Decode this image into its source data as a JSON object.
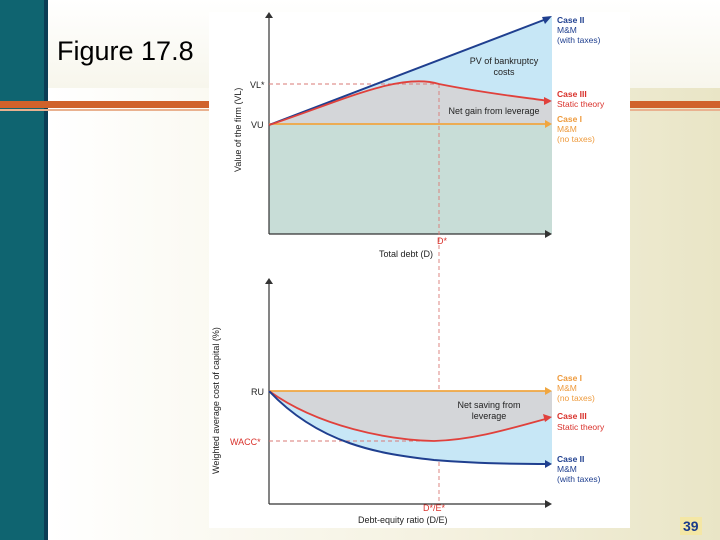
{
  "slide": {
    "title": "Figure 17.8",
    "page_number": "39"
  },
  "top_chart": {
    "y_axis_label": "Value of the firm (VL)",
    "x_axis_label": "Total debt (D)",
    "vl_star": "VL*",
    "vu": "VU",
    "d_star": "D*",
    "pv_bankruptcy": [
      "PV of bankruptcy",
      "costs"
    ],
    "net_gain": "Net gain from leverage",
    "case2": [
      "Case II",
      "M&M",
      "(with taxes)"
    ],
    "case3": [
      "Case III",
      "Static theory"
    ],
    "case1": [
      "Case I",
      "M&M",
      "(no taxes)"
    ]
  },
  "bottom_chart": {
    "y_axis_label": "Weighted average cost of capital (%)",
    "x_axis_label": "Debt-equity ratio (D/E)",
    "ru": "RU",
    "wacc_star": "WACC*",
    "de_star": "D*/E*",
    "net_saving": [
      "Net saving from",
      "leverage"
    ],
    "case1": [
      "Case I",
      "M&M",
      "(no taxes)"
    ],
    "case3": [
      "Case III",
      "Static theory"
    ],
    "case2": [
      "Case II",
      "M&M",
      "(with taxes)"
    ]
  },
  "colors": {
    "case2_line": "#1f3f8f",
    "case3_line": "#e0413c",
    "case1_line": "#f0a640",
    "case_label_red": "#d9312b",
    "case_label_orange": "#ee9a3c",
    "case_label_blue": "#1f3f8f",
    "light_blue_fill": "#c7e7f6",
    "gray_fill": "#d4d6d9",
    "teal_fill": "#c8ddd7"
  }
}
